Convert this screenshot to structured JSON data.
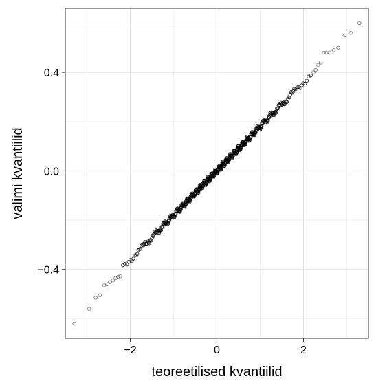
{
  "chart_data": {
    "type": "scatter",
    "title": "",
    "xlabel": "teoreetilised kvantiilid",
    "ylabel": "valimi kvantiilid",
    "xlim": [
      -3.5,
      3.5
    ],
    "ylim": [
      -0.68,
      0.66
    ],
    "grid": true,
    "x_ticks": [
      -2,
      0,
      2
    ],
    "x_tick_labels": [
      "−2",
      "0",
      "2"
    ],
    "y_ticks": [
      -0.4,
      0.0,
      0.4
    ],
    "y_tick_labels": [
      "−0.4",
      "0.0",
      "0.4"
    ],
    "point_color": "#000000",
    "n_points": 500,
    "fit": {
      "slope": 0.18,
      "intercept": 0.0
    },
    "tail_points": [
      {
        "x": -3.29,
        "y": -0.62
      },
      {
        "x": -2.95,
        "y": -0.56
      },
      {
        "x": -2.8,
        "y": -0.515
      },
      {
        "x": -2.7,
        "y": -0.505
      },
      {
        "x": -2.6,
        "y": -0.465
      },
      {
        "x": -2.53,
        "y": -0.46
      },
      {
        "x": -2.47,
        "y": -0.452
      },
      {
        "x": -2.4,
        "y": -0.445
      },
      {
        "x": -2.34,
        "y": -0.435
      },
      {
        "x": -2.28,
        "y": -0.43
      },
      {
        "x": -2.23,
        "y": -0.428
      },
      {
        "x": 2.23,
        "y": 0.4
      },
      {
        "x": 2.28,
        "y": 0.41
      },
      {
        "x": 2.34,
        "y": 0.43
      },
      {
        "x": 2.4,
        "y": 0.44
      },
      {
        "x": 2.47,
        "y": 0.48
      },
      {
        "x": 2.53,
        "y": 0.48
      },
      {
        "x": 2.6,
        "y": 0.48
      },
      {
        "x": 2.7,
        "y": 0.49
      },
      {
        "x": 2.8,
        "y": 0.5
      },
      {
        "x": 2.95,
        "y": 0.55
      },
      {
        "x": 3.09,
        "y": 0.56
      },
      {
        "x": 3.29,
        "y": 0.6
      }
    ]
  }
}
